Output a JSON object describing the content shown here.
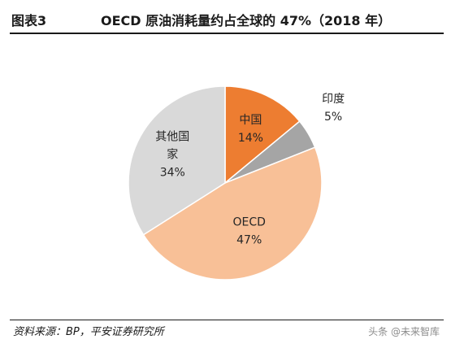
{
  "header": {
    "figure_label": "图表3",
    "title": "OECD 原油消耗量约占全球的 47%（2018 年）"
  },
  "footer": {
    "source": "资料来源：BP，平安证券研究所",
    "watermark": "头条 @未来智库"
  },
  "chart_data": {
    "type": "pie",
    "title": "OECD 原油消耗量约占全球的 47%（2018 年）",
    "start_angle_deg": 0,
    "direction": "clockwise",
    "slices": [
      {
        "label": "中国",
        "value": 14,
        "value_label": "14%",
        "color": "#ED7D31",
        "label_lines": [
          "中国",
          "14%"
        ],
        "label_position": "inside"
      },
      {
        "label": "印度",
        "value": 5,
        "value_label": "5%",
        "color": "#A5A5A5",
        "label_lines": [
          "印度",
          "5%"
        ],
        "label_position": "outside"
      },
      {
        "label": "OECD",
        "value": 47,
        "value_label": "47%",
        "color": "#F8C097",
        "label_lines": [
          "OECD",
          "47%"
        ],
        "label_position": "inside"
      },
      {
        "label": "其他国家",
        "value": 34,
        "value_label": "34%",
        "color": "#D9D9D9",
        "label_lines": [
          "其他国",
          "家",
          "34%"
        ],
        "label_position": "inside"
      }
    ]
  }
}
